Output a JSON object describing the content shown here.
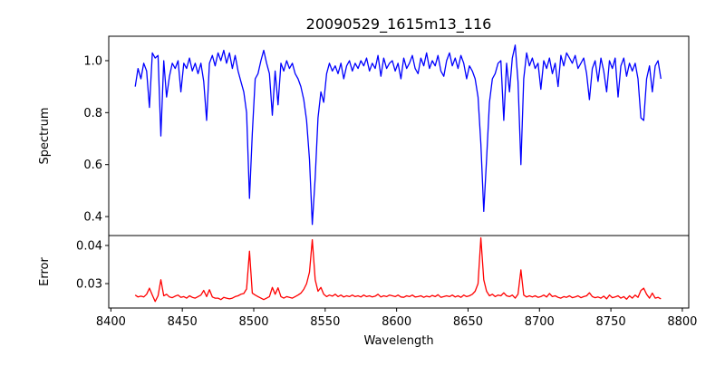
{
  "chart_data": [
    {
      "type": "line",
      "title": "20090529_1615m13_116",
      "xlabel": "",
      "ylabel": "Spectrum",
      "xlim": [
        8398.5,
        8804.5
      ],
      "ylim": [
        0.327,
        1.094
      ],
      "xticks": [],
      "yticks": [
        0.4,
        0.6,
        0.8,
        1.0
      ],
      "ytick_labels": [
        "0.4",
        "0.6",
        "0.8",
        "1.0"
      ],
      "color": "#0000ff",
      "x_start": 8417,
      "x_step": 2,
      "series": [
        {
          "name": "Spectrum",
          "values": [
            0.9,
            0.97,
            0.93,
            0.99,
            0.96,
            0.82,
            1.03,
            1.01,
            1.02,
            0.71,
            1.0,
            0.86,
            0.94,
            0.99,
            0.97,
            1.0,
            0.88,
            0.99,
            0.97,
            1.01,
            0.96,
            0.99,
            0.95,
            0.99,
            0.92,
            0.77,
            0.99,
            1.02,
            0.98,
            1.03,
            1.0,
            1.04,
            0.99,
            1.03,
            0.97,
            1.02,
            0.96,
            0.92,
            0.88,
            0.8,
            0.47,
            0.72,
            0.93,
            0.95,
            1.0,
            1.04,
            0.99,
            0.95,
            0.79,
            0.96,
            0.83,
            0.99,
            0.96,
            1.0,
            0.97,
            0.99,
            0.95,
            0.93,
            0.9,
            0.85,
            0.77,
            0.62,
            0.37,
            0.55,
            0.78,
            0.88,
            0.84,
            0.95,
            0.99,
            0.96,
            0.98,
            0.95,
            0.99,
            0.93,
            0.98,
            1.0,
            0.96,
            0.99,
            0.97,
            1.0,
            0.98,
            1.01,
            0.96,
            0.99,
            0.97,
            1.02,
            0.94,
            1.01,
            0.97,
            0.99,
            1.0,
            0.96,
            0.99,
            0.93,
            1.01,
            0.97,
            0.99,
            1.02,
            0.97,
            0.95,
            1.01,
            0.98,
            1.03,
            0.97,
            1.0,
            0.98,
            1.02,
            0.96,
            0.94,
            1.0,
            1.03,
            0.98,
            1.01,
            0.97,
            1.02,
            0.99,
            0.93,
            0.98,
            0.96,
            0.93,
            0.86,
            0.68,
            0.42,
            0.62,
            0.84,
            0.93,
            0.95,
            0.99,
            1.0,
            0.77,
            0.99,
            0.88,
            1.01,
            1.06,
            0.92,
            0.6,
            0.93,
            1.03,
            0.98,
            1.01,
            0.97,
            0.99,
            0.89,
            1.0,
            0.97,
            1.01,
            0.95,
            0.99,
            0.9,
            1.02,
            0.98,
            1.03,
            1.01,
            0.99,
            1.02,
            0.97,
            0.99,
            1.01,
            0.95,
            0.85,
            0.97,
            1.0,
            0.92,
            1.01,
            0.96,
            0.88,
            1.0,
            0.97,
            1.01,
            0.86,
            0.98,
            1.01,
            0.94,
            0.99,
            0.96,
            0.99,
            0.93,
            0.78,
            0.77,
            0.93,
            0.98,
            0.88,
            0.98,
            1.0,
            0.93
          ]
        }
      ]
    },
    {
      "type": "line",
      "xlabel": "Wavelength",
      "ylabel": "Error",
      "xlim": [
        8398.5,
        8804.5
      ],
      "ylim": [
        0.0236,
        0.0426
      ],
      "xticks": [
        8400,
        8450,
        8500,
        8550,
        8600,
        8650,
        8700,
        8750,
        8800
      ],
      "xtick_labels": [
        "8400",
        "8450",
        "8500",
        "8550",
        "8600",
        "8650",
        "8700",
        "8750",
        "8800"
      ],
      "yticks": [
        0.03,
        0.04
      ],
      "ytick_labels": [
        "0.03",
        "0.04"
      ],
      "color": "#ff0000",
      "x_start": 8417,
      "x_step": 2,
      "series": [
        {
          "name": "Error",
          "values": [
            0.027,
            0.0265,
            0.0267,
            0.0265,
            0.0272,
            0.0288,
            0.027,
            0.0253,
            0.0268,
            0.031,
            0.0268,
            0.0272,
            0.0265,
            0.0263,
            0.0267,
            0.027,
            0.0264,
            0.0266,
            0.0262,
            0.0268,
            0.0264,
            0.0262,
            0.0266,
            0.027,
            0.0282,
            0.0266,
            0.0284,
            0.0265,
            0.0262,
            0.0262,
            0.0258,
            0.0264,
            0.0262,
            0.026,
            0.0262,
            0.0266,
            0.0268,
            0.0272,
            0.0274,
            0.0286,
            0.0385,
            0.0275,
            0.027,
            0.0266,
            0.0262,
            0.0258,
            0.0262,
            0.0266,
            0.029,
            0.0272,
            0.0289,
            0.0266,
            0.0262,
            0.0266,
            0.0264,
            0.0262,
            0.0266,
            0.027,
            0.0275,
            0.0285,
            0.03,
            0.033,
            0.0415,
            0.031,
            0.028,
            0.029,
            0.0272,
            0.0266,
            0.027,
            0.0267,
            0.0272,
            0.0266,
            0.027,
            0.0265,
            0.0268,
            0.0266,
            0.027,
            0.0266,
            0.0268,
            0.0265,
            0.027,
            0.0266,
            0.0268,
            0.0265,
            0.0267,
            0.0272,
            0.0265,
            0.0268,
            0.0266,
            0.027,
            0.0268,
            0.0266,
            0.027,
            0.0265,
            0.0264,
            0.0268,
            0.0266,
            0.027,
            0.0265,
            0.0266,
            0.0268,
            0.0264,
            0.0267,
            0.0265,
            0.0269,
            0.0266,
            0.0271,
            0.0264,
            0.0266,
            0.0268,
            0.0266,
            0.027,
            0.0265,
            0.0268,
            0.0264,
            0.027,
            0.0266,
            0.0268,
            0.0272,
            0.028,
            0.03,
            0.042,
            0.031,
            0.028,
            0.0268,
            0.0272,
            0.0266,
            0.027,
            0.0268,
            0.0276,
            0.0268,
            0.0266,
            0.027,
            0.0262,
            0.0272,
            0.0336,
            0.027,
            0.0265,
            0.0268,
            0.0265,
            0.0268,
            0.0264,
            0.0266,
            0.027,
            0.0265,
            0.0274,
            0.0266,
            0.0268,
            0.0264,
            0.0262,
            0.0266,
            0.0264,
            0.0268,
            0.0263,
            0.0265,
            0.0268,
            0.0263,
            0.0266,
            0.0268,
            0.0276,
            0.0266,
            0.0263,
            0.0265,
            0.0262,
            0.0267,
            0.026,
            0.027,
            0.0263,
            0.0265,
            0.0268,
            0.0262,
            0.0266,
            0.0259,
            0.0268,
            0.0262,
            0.027,
            0.0264,
            0.0282,
            0.0288,
            0.0272,
            0.0262,
            0.0275,
            0.0262,
            0.0264,
            0.026
          ]
        }
      ]
    }
  ]
}
